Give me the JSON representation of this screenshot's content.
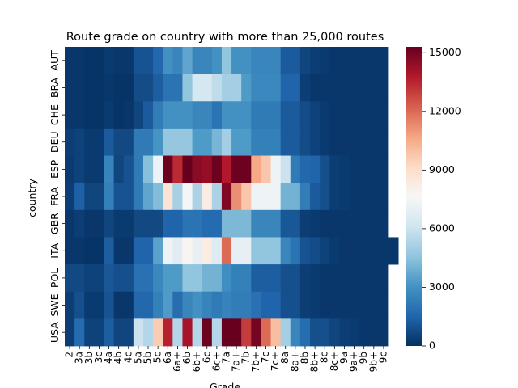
{
  "chart_data": {
    "type": "heatmap",
    "title": "Route grade on country with more than 25,000 routes",
    "xlabel": "Grade",
    "ylabel": "country",
    "x": [
      "2",
      "3a",
      "3b",
      "3c",
      "4a",
      "4b",
      "4c",
      "5a",
      "5b",
      "5c",
      "6a",
      "6a+",
      "6b",
      "6b+",
      "6c",
      "6c+",
      "7a",
      "7a+",
      "7b",
      "7b+",
      "7c",
      "7c+",
      "8a",
      "8a+",
      "8b",
      "8b+",
      "8c",
      "8c+",
      "9a",
      "9a+",
      "9b",
      "9b+",
      "9c"
    ],
    "y": [
      "AUT",
      "BRA",
      "CHE",
      "DEU",
      "ESP",
      "FRA",
      "GBR",
      "ITA",
      "POL",
      "SWE",
      "USA"
    ],
    "colorbar": {
      "ticks": [
        0,
        3000,
        6000,
        9000,
        12000,
        15000
      ],
      "range": [
        0,
        15300
      ],
      "colormap": "RdBu_r"
    },
    "rows": [
      [
        200,
        200,
        100,
        100,
        300,
        200,
        200,
        1000,
        1000,
        1600,
        3000,
        2600,
        3600,
        2600,
        2600,
        3000,
        4600,
        3000,
        3000,
        2600,
        2600,
        2600,
        1200,
        1200,
        600,
        400,
        300,
        200,
        200,
        200,
        200,
        200,
        200
      ],
      [
        200,
        200,
        100,
        100,
        200,
        100,
        100,
        800,
        800,
        1300,
        2000,
        2000,
        4600,
        6300,
        6300,
        5700,
        5000,
        5000,
        3300,
        2700,
        2700,
        2700,
        1500,
        1500,
        400,
        200,
        200,
        200,
        200,
        200,
        200,
        200,
        200
      ],
      [
        200,
        200,
        100,
        100,
        300,
        100,
        200,
        600,
        1200,
        2300,
        3000,
        3000,
        3000,
        2600,
        2600,
        2000,
        3000,
        3000,
        3000,
        2200,
        2200,
        2200,
        1200,
        1200,
        800,
        500,
        300,
        200,
        200,
        200,
        200,
        200,
        200
      ],
      [
        400,
        500,
        300,
        300,
        1200,
        700,
        700,
        2200,
        2200,
        3100,
        4700,
        4700,
        4700,
        3300,
        3300,
        4100,
        5000,
        3300,
        3300,
        2400,
        2400,
        2400,
        1200,
        1200,
        800,
        500,
        300,
        200,
        200,
        200,
        200,
        200,
        200
      ],
      [
        300,
        500,
        300,
        300,
        2500,
        600,
        1000,
        2200,
        4400,
        7200,
        15200,
        13400,
        15300,
        14600,
        14400,
        15200,
        13800,
        15200,
        15200,
        10600,
        9800,
        7300,
        6000,
        2200,
        1600,
        1500,
        900,
        400,
        300,
        200,
        200,
        200,
        200
      ],
      [
        400,
        1400,
        600,
        600,
        2400,
        1000,
        1000,
        2200,
        3600,
        4300,
        8700,
        5100,
        7500,
        5200,
        8300,
        5200,
        14800,
        11200,
        9800,
        7300,
        7300,
        7300,
        4000,
        4000,
        2300,
        1200,
        900,
        400,
        300,
        200,
        200,
        200,
        200
      ],
      [
        200,
        400,
        200,
        200,
        600,
        300,
        300,
        700,
        700,
        700,
        1500,
        1500,
        2000,
        2000,
        1700,
        1700,
        4200,
        4200,
        4200,
        2600,
        2600,
        2600,
        1100,
        1100,
        400,
        300,
        200,
        200,
        200,
        200,
        200,
        200,
        200
      ],
      [
        200,
        200,
        100,
        100,
        1300,
        200,
        200,
        1500,
        1500,
        3500,
        7300,
        6800,
        7800,
        7000,
        8300,
        6600,
        12000,
        7000,
        7000,
        4600,
        4600,
        4600,
        2600,
        2000,
        1000,
        800,
        500,
        300,
        200,
        200,
        200,
        200,
        200,
        200
      ],
      [
        700,
        700,
        500,
        500,
        1100,
        900,
        900,
        1900,
        1900,
        2700,
        3300,
        3300,
        4600,
        4600,
        4000,
        4000,
        2900,
        2400,
        2400,
        1300,
        1300,
        1300,
        900,
        900,
        400,
        300,
        200,
        200,
        200,
        200,
        200,
        200,
        200
      ],
      [
        400,
        900,
        300,
        300,
        1000,
        200,
        200,
        1600,
        1600,
        2400,
        3300,
        1800,
        2600,
        3000,
        2500,
        2200,
        2500,
        2300,
        2300,
        1900,
        1500,
        1500,
        900,
        900,
        400,
        300,
        200,
        200,
        200,
        200,
        200,
        200,
        200
      ],
      [
        400,
        1700,
        500,
        500,
        1300,
        600,
        600,
        6000,
        5400,
        9600,
        13600,
        5400,
        14000,
        5400,
        15200,
        5400,
        15300,
        15300,
        13000,
        15000,
        12000,
        10000,
        5000,
        2600,
        1800,
        900,
        900,
        600,
        400,
        300,
        200,
        200,
        200
      ]
    ]
  }
}
